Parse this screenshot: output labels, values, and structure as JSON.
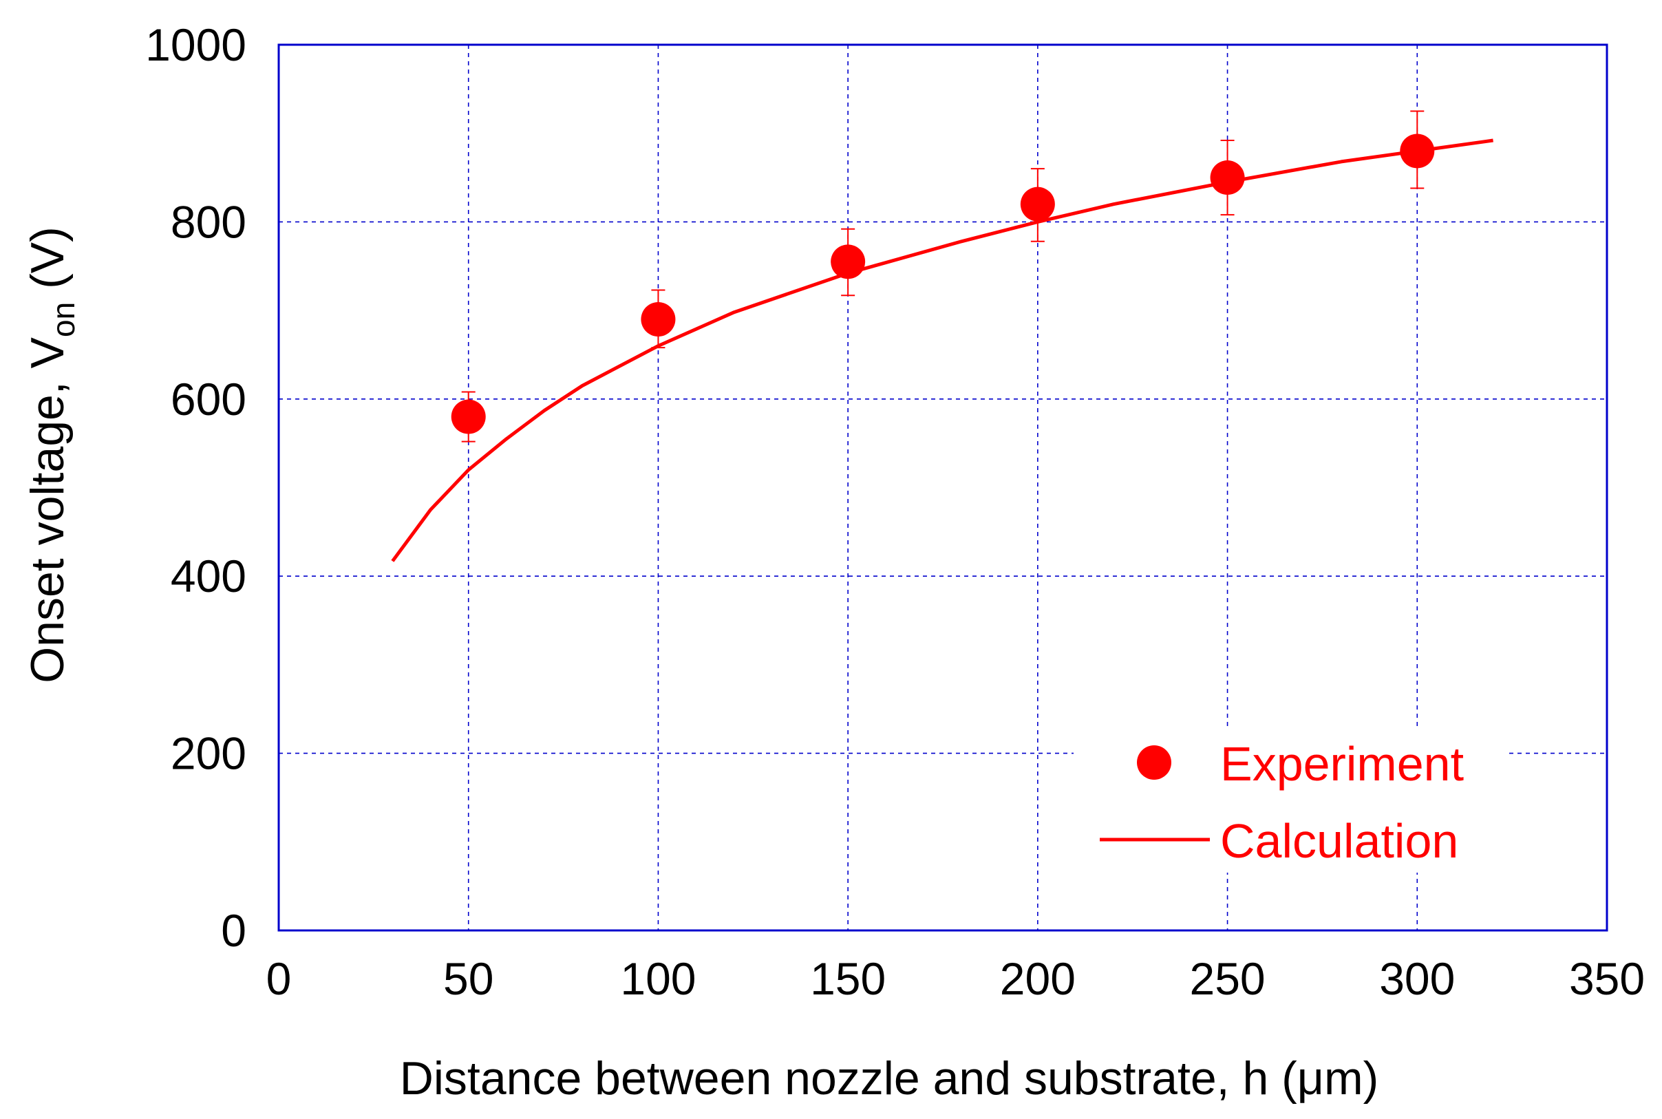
{
  "chart_data": {
    "type": "scatter",
    "title": "",
    "xlabel": "Distance between nozzle and substrate, h (μm)",
    "ylabel_main": "Onset voltage, V",
    "ylabel_sub": "on",
    "ylabel_unit": " (V)",
    "xlim": [
      0,
      350
    ],
    "ylim": [
      0,
      1000
    ],
    "xticks": [
      0,
      50,
      100,
      150,
      200,
      250,
      300,
      350
    ],
    "yticks": [
      0,
      200,
      400,
      600,
      800,
      1000
    ],
    "grid": true,
    "legend_position": "bottom-right",
    "colors": {
      "series": "#ff0000",
      "frame": "#0000cc",
      "grid": "#0000cc"
    },
    "series": [
      {
        "name": "Experiment",
        "kind": "points-with-error-bars",
        "x": [
          50,
          100,
          150,
          200,
          250,
          300
        ],
        "y": [
          580,
          690,
          755,
          820,
          850,
          880
        ],
        "error_low": [
          28,
          32,
          38,
          42,
          42,
          42
        ],
        "error_high": [
          28,
          33,
          37,
          40,
          42,
          45
        ]
      },
      {
        "name": "Calculation",
        "kind": "line",
        "x": [
          30,
          40,
          50,
          60,
          70,
          80,
          100,
          120,
          150,
          180,
          200,
          220,
          250,
          280,
          300,
          320
        ],
        "y": [
          417,
          475,
          520,
          555,
          587,
          615,
          660,
          698,
          742,
          778,
          800,
          820,
          845,
          868,
          880,
          892
        ]
      }
    ]
  }
}
